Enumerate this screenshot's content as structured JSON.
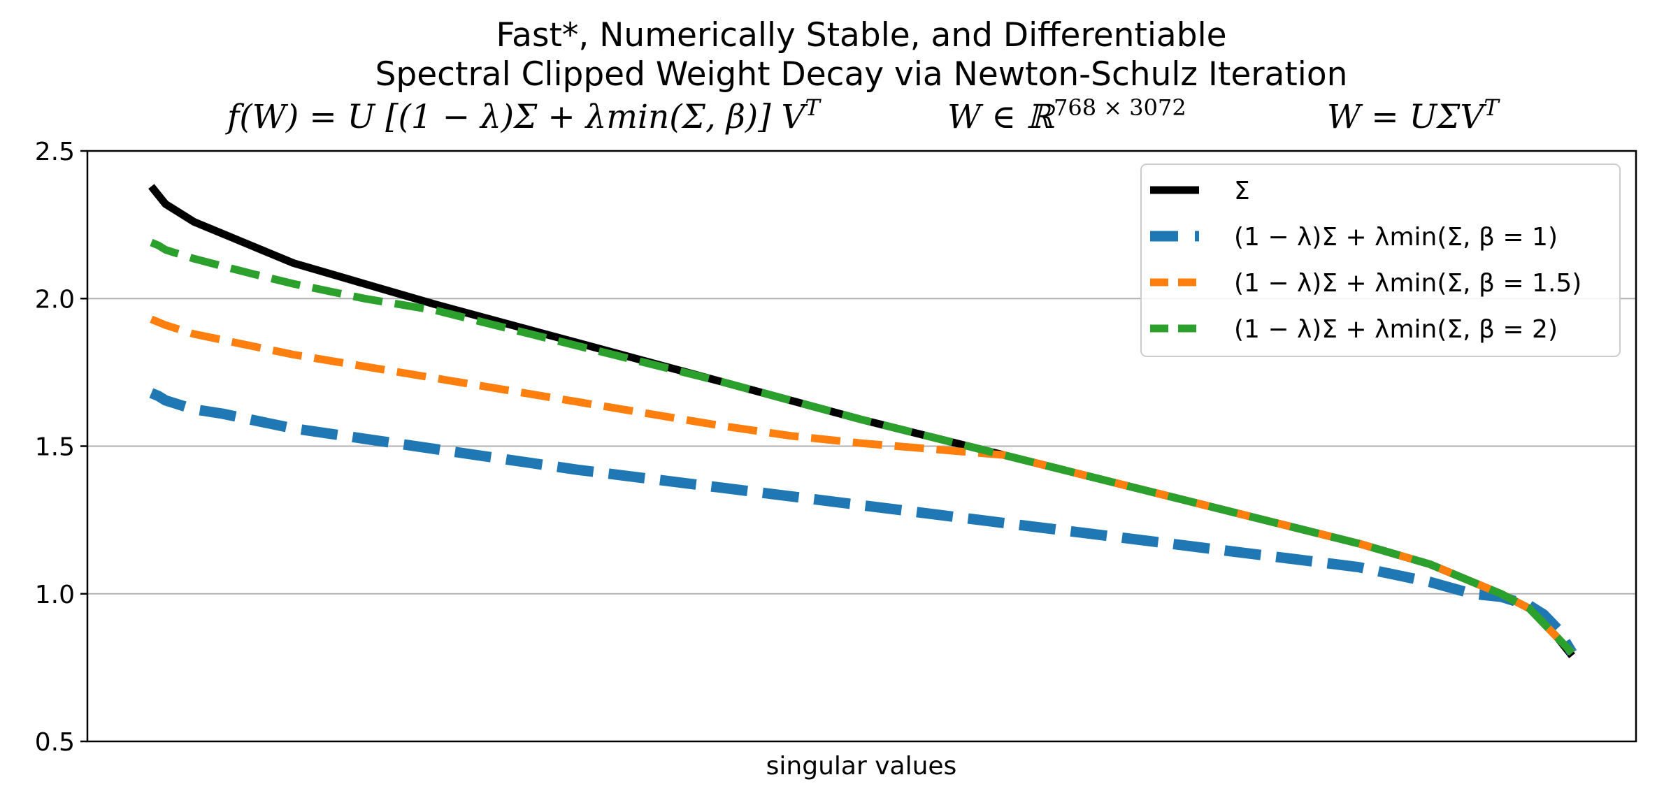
{
  "chart_data": {
    "type": "line",
    "title_lines": [
      "Fast*, Numerically Stable, and Differentiable",
      "Spectral Clipped Weight Decay via Newton-Schulz Iteration"
    ],
    "formulas": {
      "f": "f(W) = U [(1 − λ)Σ + λmin(Σ, β)] V",
      "f_sup": "T",
      "w_space": "W ∈ ℝ",
      "w_space_sup": "768 × 3072",
      "svd": "W = UΣV",
      "svd_sup": "T"
    },
    "xlabel": "singular values",
    "ylabel": "",
    "ylim": [
      0.5,
      2.5
    ],
    "yticks": [
      "0.5",
      "1.0",
      "1.5",
      "2.0",
      "2.5"
    ],
    "xlim": [
      -0.045,
      1.045
    ],
    "grid": "y",
    "legend_position": "upper right",
    "series": [
      {
        "name": "Σ",
        "color": "#000000",
        "style": "solid",
        "x": [
          0,
          0.005,
          0.01,
          0.02,
          0.03,
          0.05,
          0.07,
          0.1,
          0.15,
          0.2,
          0.3,
          0.4,
          0.5,
          0.6,
          0.7,
          0.8,
          0.85,
          0.9,
          0.93,
          0.95,
          0.97,
          0.98,
          0.99,
          1.0
        ],
        "y": [
          2.38,
          2.35,
          2.32,
          2.29,
          2.26,
          2.22,
          2.18,
          2.12,
          2.05,
          1.98,
          1.85,
          1.72,
          1.59,
          1.47,
          1.35,
          1.23,
          1.17,
          1.1,
          1.04,
          1.0,
          0.95,
          0.9,
          0.85,
          0.79
        ]
      },
      {
        "name": "(1 − λ)Σ + λmin(Σ, β = 1)",
        "color": "#1f77b4",
        "style": "dashed-long",
        "x": [
          0,
          0.005,
          0.01,
          0.02,
          0.03,
          0.05,
          0.07,
          0.1,
          0.15,
          0.2,
          0.3,
          0.4,
          0.5,
          0.6,
          0.7,
          0.8,
          0.85,
          0.87,
          0.9,
          0.93,
          0.95,
          0.97,
          0.98,
          0.99,
          1.0
        ],
        "y": [
          1.68,
          1.67,
          1.655,
          1.64,
          1.625,
          1.61,
          1.59,
          1.56,
          1.525,
          1.49,
          1.42,
          1.36,
          1.3,
          1.24,
          1.18,
          1.12,
          1.09,
          1.07,
          1.04,
          1.0,
          0.99,
          0.96,
          0.93,
          0.88,
          0.8
        ]
      },
      {
        "name": "(1 − λ)Σ + λmin(Σ, β = 1.5)",
        "color": "#ff7f0e",
        "style": "dashed",
        "x": [
          0,
          0.005,
          0.01,
          0.02,
          0.03,
          0.05,
          0.07,
          0.1,
          0.15,
          0.2,
          0.3,
          0.35,
          0.4,
          0.45,
          0.5,
          0.6,
          0.7,
          0.8,
          0.85,
          0.9,
          0.93,
          0.95,
          0.97,
          0.98,
          0.99,
          1.0
        ],
        "y": [
          1.93,
          1.92,
          1.91,
          1.895,
          1.88,
          1.86,
          1.84,
          1.81,
          1.77,
          1.73,
          1.65,
          1.61,
          1.57,
          1.535,
          1.51,
          1.47,
          1.35,
          1.23,
          1.17,
          1.1,
          1.04,
          1.0,
          0.95,
          0.9,
          0.85,
          0.8
        ]
      },
      {
        "name": "(1 − λ)Σ + λmin(Σ, β = 2)",
        "color": "#2ca02c",
        "style": "dashed",
        "x": [
          0,
          0.005,
          0.01,
          0.02,
          0.03,
          0.05,
          0.07,
          0.1,
          0.15,
          0.2,
          0.3,
          0.4,
          0.5,
          0.6,
          0.7,
          0.8,
          0.85,
          0.9,
          0.93,
          0.95,
          0.97,
          0.98,
          0.99,
          1.0
        ],
        "y": [
          2.19,
          2.18,
          2.165,
          2.15,
          2.135,
          2.11,
          2.085,
          2.05,
          2.0,
          1.96,
          1.84,
          1.72,
          1.59,
          1.47,
          1.35,
          1.23,
          1.17,
          1.1,
          1.04,
          1.0,
          0.95,
          0.9,
          0.85,
          0.8
        ]
      }
    ]
  }
}
